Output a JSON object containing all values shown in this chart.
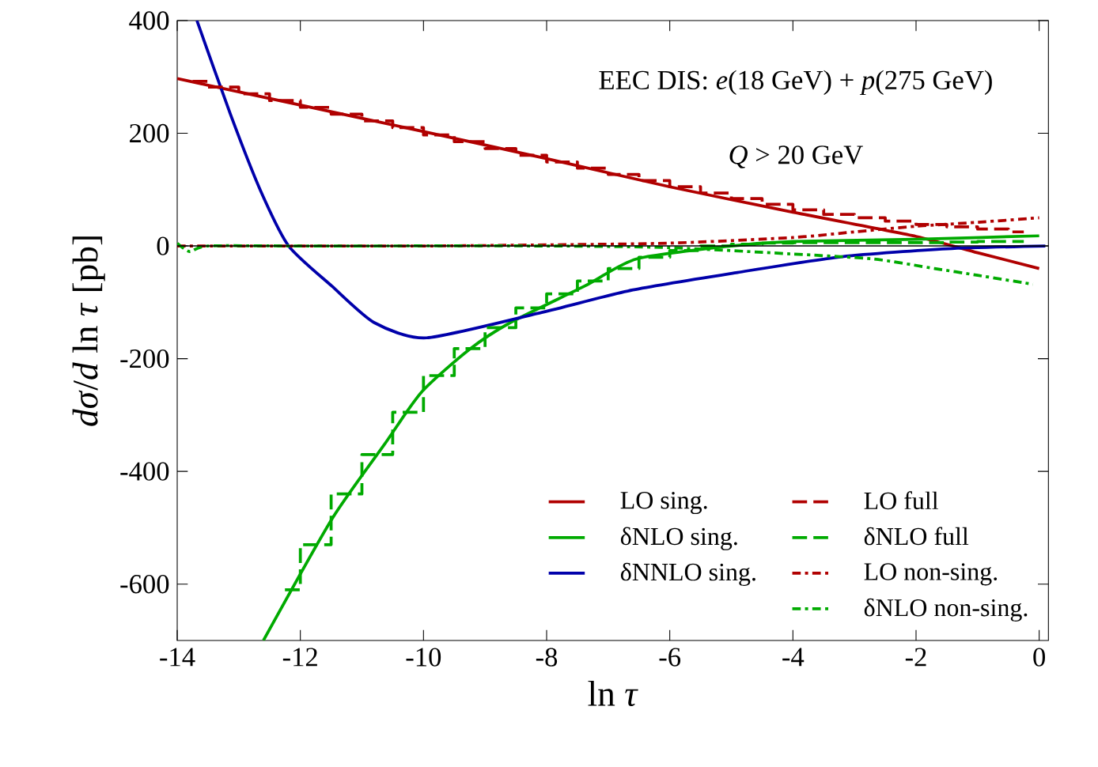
{
  "chart_data": {
    "type": "line",
    "xlabel": "ln *τ*",
    "ylabel": "*dσ*/*d* ln *τ*  [pb]",
    "annotations": [
      "EEC DIS: *e*(18 GeV) + *p*(275 GeV)",
      "*Q* > 20 GeV"
    ],
    "xlim": [
      -14,
      0.15
    ],
    "ylim": [
      -700,
      400
    ],
    "xticks": [
      -14,
      -12,
      -10,
      -8,
      -6,
      -4,
      -2,
      0
    ],
    "yticks": [
      -600,
      -400,
      -200,
      0,
      200,
      400
    ],
    "ref_lines": [
      {
        "axis": "y",
        "value": 0,
        "color": "#000000"
      }
    ],
    "legend": "bottom right",
    "grid": false,
    "marker": "none",
    "series": [
      {
        "name": "LO sing.",
        "color": "#b00000",
        "line_style": "solid",
        "x": [
          -14,
          -12,
          -10,
          -8,
          -6,
          -4,
          -2,
          -1,
          0
        ],
        "values": [
          297,
          250,
          203,
          155,
          105,
          60,
          17,
          -12,
          -40
        ]
      },
      {
        "name": "δNLO sing.",
        "color": "#00aa00",
        "line_style": "solid",
        "x": [
          -12.6,
          -11.49,
          -10.64,
          -10.03,
          -9.26,
          -8.59,
          -7.38,
          -6.54,
          -5,
          -4,
          -2,
          0
        ],
        "values": [
          -700,
          -485,
          -353,
          -259,
          -184,
          -136,
          -71,
          -23,
          0,
          8,
          12,
          18
        ]
      },
      {
        "name": "δNNLO sing.",
        "color": "#0000aa",
        "line_style": "solid",
        "x": [
          -13.68,
          -13.13,
          -12.65,
          -12.19,
          -11.49,
          -10.8,
          -9.95,
          -8.08,
          -6.6,
          -4.9,
          -3.2,
          -1.49,
          0.1
        ],
        "values": [
          400,
          232,
          99,
          0,
          -71,
          -136,
          -163,
          -118,
          -78,
          -47,
          -19,
          -5,
          0
        ]
      },
      {
        "name": "LO full",
        "color": "#b00000",
        "type": "step",
        "line_style": "dashed",
        "x": [
          -13.75,
          -13.25,
          -12.75,
          -12.25,
          -11.75,
          -11.25,
          -10.75,
          -10.25,
          -9.75,
          -9.25,
          -8.75,
          -8.25,
          -7.75,
          -7.25,
          -6.75,
          -6.25,
          -5.75,
          -5.25,
          -4.75,
          -4.25,
          -3.75,
          -3.25,
          -2.75,
          -2.25,
          -1.75,
          -1.25,
          -0.75,
          -0.25
        ],
        "values": [
          292,
          282,
          270,
          258,
          246,
          234,
          222,
          210,
          197,
          185,
          173,
          161,
          149,
          138,
          127,
          116,
          105,
          94,
          84,
          74,
          64,
          56,
          50,
          44,
          38,
          34,
          30,
          25
        ]
      },
      {
        "name": "δNLO full",
        "color": "#00aa00",
        "type": "step",
        "line_style": "dashed",
        "x": [
          -12.25,
          -11.75,
          -11.25,
          -10.75,
          -10.25,
          -9.75,
          -9.25,
          -8.75,
          -8.25,
          -7.75,
          -7.25,
          -6.75,
          -6.25,
          -5.75,
          -5.25,
          -4.75,
          -4.25,
          -3.75,
          -3.25,
          -2.75,
          -2.25,
          -1.75,
          -1.25,
          -0.75,
          -0.25
        ],
        "values": [
          -610,
          -530,
          -440,
          -370,
          -295,
          -230,
          -182,
          -145,
          -110,
          -85,
          -62,
          -40,
          -20,
          -8,
          0,
          3,
          5,
          6,
          6,
          6,
          6,
          6,
          7,
          8,
          8
        ]
      },
      {
        "name": "LO non-sing.",
        "color": "#b00000",
        "line_style": "dotted",
        "x": [
          -14,
          -10,
          -8,
          -6,
          -4,
          -3,
          -2,
          -1,
          0
        ],
        "values": [
          0,
          0,
          2,
          5,
          15,
          25,
          35,
          42,
          50
        ]
      },
      {
        "name": "δNLO non-sing.",
        "color": "#00aa00",
        "line_style": "dotted",
        "x": [
          -14,
          -13.8,
          -13.5,
          -12,
          -8,
          -6,
          -4.05,
          -2.7,
          -1.7,
          -1,
          -0.1
        ],
        "values": [
          5,
          -10,
          0,
          0,
          0,
          -3,
          -14,
          -23,
          -40,
          -52,
          -68
        ]
      }
    ]
  }
}
